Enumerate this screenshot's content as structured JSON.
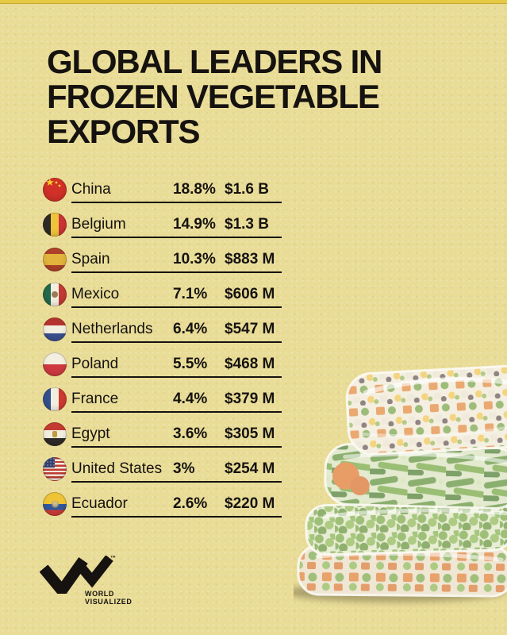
{
  "page": {
    "background_color": "#e9dc97",
    "accent_strip_color": "#e5c944",
    "text_color": "#15120f"
  },
  "title": {
    "lines": [
      "GLOBAL LEADERS IN",
      "FROZEN VEGETABLE",
      "EXPORTS"
    ]
  },
  "table": {
    "rows": [
      {
        "country": "China",
        "share": "18.8%",
        "value": "$1.6 B",
        "flag": "cn"
      },
      {
        "country": "Belgium",
        "share": "14.9%",
        "value": "$1.3 B",
        "flag": "be"
      },
      {
        "country": "Spain",
        "share": "10.3%",
        "value": "$883 M",
        "flag": "es"
      },
      {
        "country": "Mexico",
        "share": "7.1%",
        "value": "$606 M",
        "flag": "mx"
      },
      {
        "country": "Netherlands",
        "share": "6.4%",
        "value": "$547 M",
        "flag": "nl"
      },
      {
        "country": "Poland",
        "share": "5.5%",
        "value": "$468 M",
        "flag": "pl"
      },
      {
        "country": "France",
        "share": "4.4%",
        "value": "$379 M",
        "flag": "fr"
      },
      {
        "country": "Egypt",
        "share": "3.6%",
        "value": "$305 M",
        "flag": "eg"
      },
      {
        "country": "United States",
        "share": "3%",
        "value": "$254 M",
        "flag": "us"
      },
      {
        "country": "Ecuador",
        "share": "2.6%",
        "value": "$220 M",
        "flag": "ec"
      }
    ]
  },
  "footer": {
    "logo": {
      "trademark": "™",
      "brand_line1": "WORLD",
      "brand_line2": "VISUALIZED"
    }
  },
  "illustration": {
    "alt": "Stack of four transparent plastic bags filled with frozen mixed vegetables, green beans, peas and carrots"
  },
  "chart_data": {
    "type": "table",
    "title": "GLOBAL LEADERS IN FROZEN VEGETABLE EXPORTS",
    "categories": [
      "China",
      "Belgium",
      "Spain",
      "Mexico",
      "Netherlands",
      "Poland",
      "France",
      "Egypt",
      "United States",
      "Ecuador"
    ],
    "series": [
      {
        "name": "export_share_percent",
        "values": [
          18.8,
          14.9,
          10.3,
          7.1,
          6.4,
          5.5,
          4.4,
          3.6,
          3.0,
          2.6
        ]
      },
      {
        "name": "export_value_usd",
        "values": [
          "$1.6 B",
          "$1.3 B",
          "$883 M",
          "$606 M",
          "$547 M",
          "$468 M",
          "$379 M",
          "$305 M",
          "$254 M",
          "$220 M"
        ]
      }
    ],
    "legend": "none",
    "notes": "Infographic list with circular country flags; values left-aligned in columns"
  }
}
